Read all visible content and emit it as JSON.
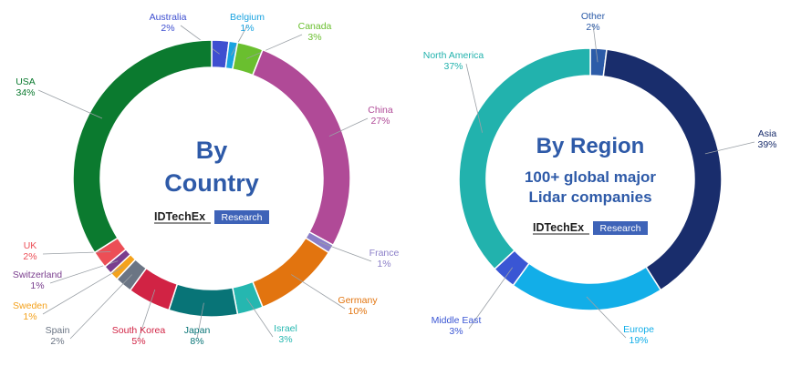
{
  "chart_data": [
    {
      "type": "pie",
      "donut": true,
      "center_title": [
        "By",
        "Country"
      ],
      "center_subtitle": [],
      "logo": {
        "brand": "IDTechEx",
        "tag": "Research"
      },
      "slices": [
        {
          "label": "Australia",
          "value": 2,
          "value_text": "2%",
          "color": "#3e4fd0"
        },
        {
          "label": "Belgium",
          "value": 1,
          "value_text": "1%",
          "color": "#1aa3e0"
        },
        {
          "label": "Canada",
          "value": 3,
          "value_text": "3%",
          "color": "#6abf2f"
        },
        {
          "label": "China",
          "value": 27,
          "value_text": "27%",
          "color": "#b04a97"
        },
        {
          "label": "France",
          "value": 1,
          "value_text": "1%",
          "color": "#8b7fc8"
        },
        {
          "label": "Germany",
          "value": 10,
          "value_text": "10%",
          "color": "#e2740f"
        },
        {
          "label": "Israel",
          "value": 3,
          "value_text": "3%",
          "color": "#25b7b0"
        },
        {
          "label": "Japan",
          "value": 8,
          "value_text": "8%",
          "color": "#087477"
        },
        {
          "label": "South Korea",
          "value": 5,
          "value_text": "5%",
          "color": "#d12344"
        },
        {
          "label": "Spain",
          "value": 2,
          "value_text": "2%",
          "color": "#6b7584"
        },
        {
          "label": "Sweden",
          "value": 1,
          "value_text": "1%",
          "color": "#f4a21d"
        },
        {
          "label": "Switzerland",
          "value": 1,
          "value_text": "1%",
          "color": "#7a3e8e"
        },
        {
          "label": "UK",
          "value": 2,
          "value_text": "2%",
          "color": "#ec4e56"
        },
        {
          "label": "USA",
          "value": 34,
          "value_text": "34%",
          "color": "#0b7a2f"
        }
      ]
    },
    {
      "type": "pie",
      "donut": true,
      "center_title": [
        "By Region"
      ],
      "center_subtitle": [
        "100+ global major",
        "Lidar companies"
      ],
      "logo": {
        "brand": "IDTechEx",
        "tag": "Research"
      },
      "slices": [
        {
          "label": "Other",
          "value": 2,
          "value_text": "2%",
          "color": "#2c5ba8"
        },
        {
          "label": "Asia",
          "value": 39,
          "value_text": "39%",
          "color": "#192d6c"
        },
        {
          "label": "Europe",
          "value": 19,
          "value_text": "19%",
          "color": "#12aee8"
        },
        {
          "label": "Middle East",
          "value": 3,
          "value_text": "3%",
          "color": "#3a56d4"
        },
        {
          "label": "North America",
          "value": 37,
          "value_text": "37%",
          "color": "#22b2ad"
        }
      ]
    }
  ]
}
